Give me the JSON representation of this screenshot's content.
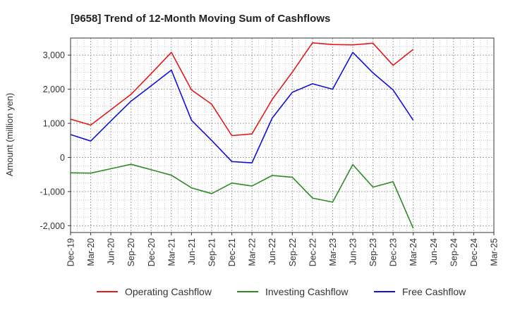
{
  "chart_data": {
    "type": "line",
    "title": "[9658]  Trend of 12-Month Moving Sum of Cashflows",
    "xlabel": "",
    "ylabel": "Amount (million yen)",
    "ylim": [
      -2200,
      3500
    ],
    "yticks": [
      3000,
      2000,
      1000,
      0,
      -1000,
      -2000
    ],
    "ytick_labels": [
      "3,000",
      "2,000",
      "1,000",
      "0",
      "-1,000",
      "-2,000"
    ],
    "categories": [
      "Dec-19",
      "Mar-20",
      "Jun-20",
      "Sep-20",
      "Dec-20",
      "Mar-21",
      "Jun-21",
      "Sep-21",
      "Dec-21",
      "Mar-22",
      "Jun-22",
      "Sep-22",
      "Dec-22",
      "Mar-23",
      "Jun-23",
      "Sep-23",
      "Dec-23",
      "Mar-24",
      "Jun-24",
      "Sep-24",
      "Dec-24",
      "Mar-25"
    ],
    "grid": true,
    "legend_position": "bottom",
    "series": [
      {
        "name": "Operating Cashflow",
        "color": "#e31a1c",
        "values": [
          1120,
          950,
          1400,
          1850,
          2460,
          3080,
          1980,
          1560,
          640,
          690,
          1700,
          2500,
          3360,
          3310,
          3300,
          3350,
          2700,
          3170,
          null,
          null,
          null,
          null
        ]
      },
      {
        "name": "Investing Cashflow",
        "color": "#2e8b22",
        "values": [
          -450,
          -460,
          -330,
          -200,
          -360,
          -520,
          -890,
          -1060,
          -750,
          -840,
          -530,
          -580,
          -1190,
          -1310,
          -210,
          -870,
          -710,
          -2080,
          null,
          null,
          null,
          null
        ]
      },
      {
        "name": "Free Cashflow",
        "color": "#1010d8",
        "values": [
          670,
          480,
          1070,
          1650,
          2100,
          2560,
          1090,
          500,
          -120,
          -160,
          1150,
          1910,
          2160,
          2000,
          3080,
          2480,
          1980,
          1090,
          null,
          null,
          null,
          null
        ]
      }
    ]
  }
}
